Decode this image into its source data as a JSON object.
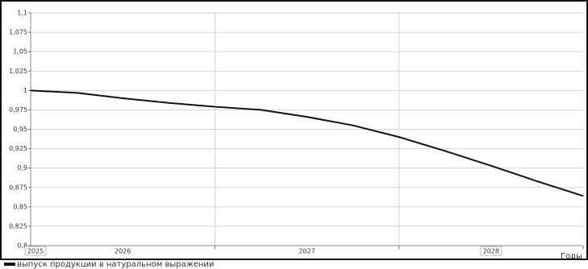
{
  "chart_data": {
    "type": "line",
    "x_label": "Годы",
    "x": [
      2025,
      2025.25,
      2025.5,
      2025.75,
      2026,
      2026.25,
      2026.5,
      2026.75,
      2027,
      2027.25,
      2027.5,
      2027.75,
      2028
    ],
    "series": [
      {
        "name": "выпуск продукции в натуральном выражении",
        "color": "#111111",
        "values": [
          1.0,
          0.997,
          0.99,
          0.984,
          0.979,
          0.975,
          0.966,
          0.955,
          0.94,
          0.922,
          0.903,
          0.883,
          0.864
        ]
      }
    ],
    "xlim": [
      2025,
      2028
    ],
    "xticks": [
      2025,
      2026,
      2027,
      2028
    ],
    "ylim": [
      0.8,
      1.1
    ],
    "yticks": [
      {
        "value": 0.8,
        "label": "0,8"
      },
      {
        "value": 0.825,
        "label": "0,825"
      },
      {
        "value": 0.85,
        "label": "0,85"
      },
      {
        "value": 0.875,
        "label": "0,875"
      },
      {
        "value": 0.9,
        "label": "0,9"
      },
      {
        "value": 0.925,
        "label": "0,925"
      },
      {
        "value": 0.95,
        "label": "0,95"
      },
      {
        "value": 0.975,
        "label": "0,975"
      },
      1,
      {
        "value": 1.025,
        "label": "1,025"
      },
      {
        "value": 1.05,
        "label": "1,05"
      },
      {
        "value": 1.075,
        "label": "1,075"
      },
      {
        "value": 1.1,
        "label": "1,1"
      }
    ],
    "grid": true
  }
}
